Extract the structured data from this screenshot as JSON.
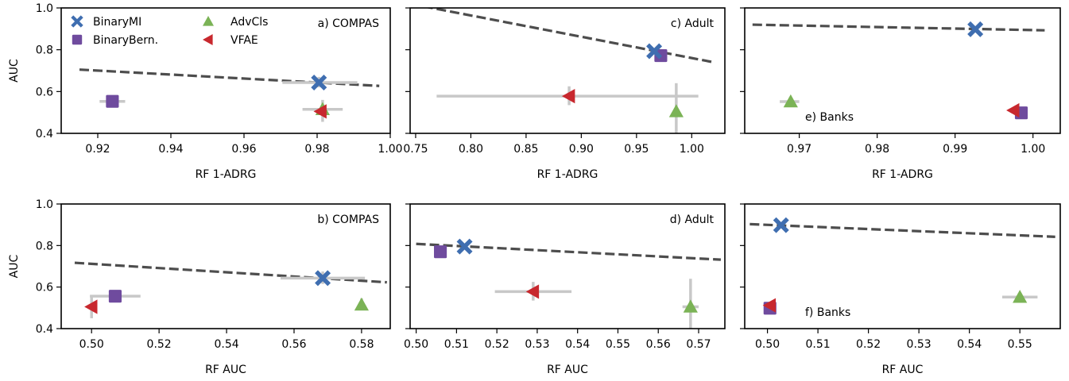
{
  "figure": {
    "legend": {
      "items": [
        {
          "label": "BinaryMI",
          "marker": "x",
          "color": "#3f6eb0"
        },
        {
          "label": "BinaryBern.",
          "marker": "square",
          "color": "#6f4b9e"
        },
        {
          "label": "AdvCls",
          "marker": "triangle-up",
          "color": "#7bb356"
        },
        {
          "label": "VFAE",
          "marker": "triangle-left",
          "color": "#c8282e"
        }
      ]
    },
    "colors": {
      "BinaryMI": "#3f6eb0",
      "BinaryBern.": "#6f4b9e",
      "AdvCls": "#7bb356",
      "VFAE": "#c8282e",
      "trend": "#4d4d4d",
      "errorbar": "#c8c8c8"
    }
  },
  "chart_data": [
    {
      "type": "scatter",
      "label": "a) COMPAS",
      "label_pos": "top-right",
      "xlabel": "RF 1-ADRG",
      "ylabel": "AUC",
      "xlim": [
        0.91,
        1.0
      ],
      "ylim": [
        0.4,
        1.0
      ],
      "xticks": [
        0.92,
        0.94,
        0.96,
        0.98,
        1.0
      ],
      "xtick_labels": [
        "0.92",
        "0.94",
        "0.96",
        "0.98",
        "1.00"
      ],
      "yticks": [
        0.4,
        0.6,
        0.8,
        1.0
      ],
      "ytick_labels": [
        "0.4",
        "0.6",
        "0.8",
        "1.0"
      ],
      "trend": [
        [
          0.915,
          0.705
        ],
        [
          0.997,
          0.627
        ]
      ],
      "points": [
        {
          "series": "BinaryMI",
          "x": 0.9805,
          "y": 0.643,
          "xerr": [
            0.9705,
            0.991
          ],
          "yerr": [
            0.62,
            0.67
          ]
        },
        {
          "series": "BinaryBern.",
          "x": 0.924,
          "y": 0.553,
          "xerr": [
            0.9205,
            0.9275
          ],
          "yerr": null
        },
        {
          "series": "AdvCls",
          "x": 0.9815,
          "y": 0.515,
          "xerr": [
            0.976,
            0.987
          ],
          "yerr": [
            0.455,
            0.56
          ]
        },
        {
          "series": "VFAE",
          "x": 0.981,
          "y": 0.505,
          "xerr": null,
          "yerr": null
        }
      ]
    },
    {
      "type": "scatter",
      "label": "c) Adult",
      "label_pos": "top-right",
      "xlabel": "RF 1-ADRG",
      "ylabel": "",
      "xlim": [
        0.745,
        1.03
      ],
      "ylim": [
        0.4,
        1.0
      ],
      "xticks": [
        0.75,
        0.8,
        0.85,
        0.9,
        0.95,
        1.0
      ],
      "xtick_labels": [
        "0.75",
        "0.80",
        "0.85",
        "0.90",
        "0.95",
        "1.00"
      ],
      "yticks": [
        0.4,
        0.6,
        0.8,
        1.0
      ],
      "ytick_labels": [],
      "trend": [
        [
          0.745,
          1.02
        ],
        [
          1.02,
          0.74
        ]
      ],
      "points": [
        {
          "series": "BinaryMI",
          "x": 0.966,
          "y": 0.793,
          "xerr": null,
          "yerr": null
        },
        {
          "series": "BinaryBern.",
          "x": 0.972,
          "y": 0.772,
          "xerr": null,
          "yerr": null
        },
        {
          "series": "AdvCls",
          "x": 0.986,
          "y": 0.505,
          "xerr": null,
          "yerr": [
            0.4,
            0.64
          ]
        },
        {
          "series": "VFAE",
          "x": 0.889,
          "y": 0.578,
          "xerr": [
            0.769,
            1.006
          ],
          "yerr": [
            0.535,
            0.625
          ]
        }
      ]
    },
    {
      "type": "scatter",
      "label": "e) Banks",
      "label_pos": "bottom-left",
      "xlabel": "RF 1-ADRG",
      "ylabel": "",
      "xlim": [
        0.963,
        1.0035
      ],
      "ylim": [
        0.4,
        1.0
      ],
      "xticks": [
        0.97,
        0.98,
        0.99,
        1.0
      ],
      "xtick_labels": [
        "0.97",
        "0.98",
        "0.99",
        "1.00"
      ],
      "yticks": [
        0.4,
        0.6,
        0.8,
        1.0
      ],
      "ytick_labels": [],
      "trend": [
        [
          0.964,
          0.92
        ],
        [
          1.0015,
          0.893
        ]
      ],
      "points": [
        {
          "series": "BinaryMI",
          "x": 0.9926,
          "y": 0.898,
          "xerr": null,
          "yerr": null
        },
        {
          "series": "BinaryBern.",
          "x": 0.9985,
          "y": 0.498,
          "xerr": null,
          "yerr": null
        },
        {
          "series": "AdvCls",
          "x": 0.9689,
          "y": 0.552,
          "xerr": [
            0.9675,
            0.97
          ],
          "yerr": null
        },
        {
          "series": "VFAE",
          "x": 0.9975,
          "y": 0.51,
          "xerr": null,
          "yerr": null
        }
      ]
    },
    {
      "type": "scatter",
      "label": "b) COMPAS",
      "label_pos": "top-right",
      "xlabel": "RF AUC",
      "ylabel": "AUC",
      "xlim": [
        0.491,
        0.5885
      ],
      "ylim": [
        0.4,
        1.0
      ],
      "xticks": [
        0.5,
        0.52,
        0.54,
        0.56,
        0.58
      ],
      "xtick_labels": [
        "0.50",
        "0.52",
        "0.54",
        "0.56",
        "0.58"
      ],
      "yticks": [
        0.4,
        0.6,
        0.8,
        1.0
      ],
      "ytick_labels": [
        "0.4",
        "0.6",
        "0.8",
        "1.0"
      ],
      "trend": [
        [
          0.495,
          0.717
        ],
        [
          0.5875,
          0.623
        ]
      ],
      "points": [
        {
          "series": "BinaryMI",
          "x": 0.5685,
          "y": 0.643,
          "xerr": [
            0.556,
            0.581
          ],
          "yerr": [
            0.615,
            0.675
          ]
        },
        {
          "series": "BinaryBern.",
          "x": 0.507,
          "y": 0.556,
          "xerr": [
            0.4995,
            0.5145
          ],
          "yerr": null
        },
        {
          "series": "AdvCls",
          "x": 0.58,
          "y": 0.515,
          "xerr": null,
          "yerr": [
            0.49,
            0.545
          ]
        },
        {
          "series": "VFAE",
          "x": 0.5,
          "y": 0.505,
          "xerr": null,
          "yerr": [
            0.45,
            0.56
          ]
        }
      ]
    },
    {
      "type": "scatter",
      "label": "d) Adult",
      "label_pos": "top-right",
      "xlabel": "RF AUC",
      "ylabel": "",
      "xlim": [
        0.4985,
        0.5765
      ],
      "ylim": [
        0.4,
        1.0
      ],
      "xticks": [
        0.5,
        0.51,
        0.52,
        0.53,
        0.54,
        0.55,
        0.56,
        0.57
      ],
      "xtick_labels": [
        "0.50",
        "0.51",
        "0.52",
        "0.53",
        "0.54",
        "0.55",
        "0.56",
        "0.57"
      ],
      "yticks": [
        0.4,
        0.6,
        0.8,
        1.0
      ],
      "ytick_labels": [],
      "trend": [
        [
          0.5,
          0.808
        ],
        [
          0.5755,
          0.732
        ]
      ],
      "points": [
        {
          "series": "BinaryMI",
          "x": 0.512,
          "y": 0.795,
          "xerr": null,
          "yerr": null
        },
        {
          "series": "BinaryBern.",
          "x": 0.506,
          "y": 0.77,
          "xerr": null,
          "yerr": null
        },
        {
          "series": "AdvCls",
          "x": 0.568,
          "y": 0.505,
          "xerr": [
            0.566,
            0.57
          ],
          "yerr": [
            0.4,
            0.64
          ]
        },
        {
          "series": "VFAE",
          "x": 0.529,
          "y": 0.578,
          "xerr": [
            0.5195,
            0.5385
          ],
          "yerr": [
            0.535,
            0.625
          ]
        }
      ]
    },
    {
      "type": "scatter",
      "label": "f) Banks",
      "label_pos": "bottom-left",
      "xlabel": "RF AUC",
      "ylabel": "",
      "xlim": [
        0.4955,
        0.558
      ],
      "ylim": [
        0.4,
        1.0
      ],
      "xticks": [
        0.5,
        0.51,
        0.52,
        0.53,
        0.54,
        0.55
      ],
      "xtick_labels": [
        "0.50",
        "0.51",
        "0.52",
        "0.53",
        "0.54",
        "0.55"
      ],
      "yticks": [
        0.4,
        0.6,
        0.8,
        1.0
      ],
      "ytick_labels": [],
      "trend": [
        [
          0.4965,
          0.903
        ],
        [
          0.557,
          0.842
        ]
      ],
      "points": [
        {
          "series": "BinaryMI",
          "x": 0.5027,
          "y": 0.898,
          "xerr": null,
          "yerr": null
        },
        {
          "series": "BinaryBern.",
          "x": 0.5005,
          "y": 0.498,
          "xerr": null,
          "yerr": null
        },
        {
          "series": "AdvCls",
          "x": 0.55,
          "y": 0.552,
          "xerr": [
            0.5465,
            0.5535
          ],
          "yerr": null
        },
        {
          "series": "VFAE",
          "x": 0.5005,
          "y": 0.512,
          "xerr": null,
          "yerr": null
        }
      ]
    }
  ]
}
